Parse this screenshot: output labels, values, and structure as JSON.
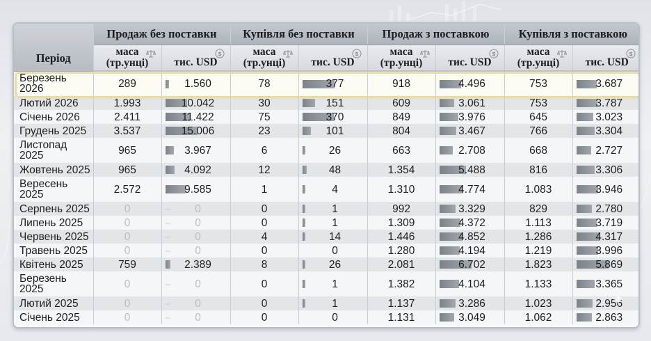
{
  "table": {
    "period_header": "Період",
    "groups": [
      "Продаж без поставки",
      "Купівля без поставки",
      "Продаж з поставкою",
      "Купівля з поставкою"
    ],
    "sub_mass_line1": "маса",
    "sub_mass_line2": "(тр.унці)",
    "sub_usd": "тис. USD",
    "zero_dash": "–",
    "rows": [
      {
        "period": "Березень 2026",
        "v": [
          "289",
          "1.560",
          "78",
          "377",
          "918",
          "4.496",
          "753",
          "3.687"
        ]
      },
      {
        "period": "Лютий 2026",
        "v": [
          "1.993",
          "10.042",
          "30",
          "151",
          "609",
          "3.061",
          "753",
          "3.787"
        ]
      },
      {
        "period": "Січень 2026",
        "v": [
          "2.411",
          "11.422",
          "75",
          "370",
          "849",
          "3.976",
          "645",
          "3.023"
        ]
      },
      {
        "period": "Грудень 2025",
        "v": [
          "3.537",
          "15.006",
          "23",
          "101",
          "804",
          "3.467",
          "766",
          "3.304"
        ]
      },
      {
        "period": "Листопад 2025",
        "v": [
          "965",
          "3.967",
          "6",
          "26",
          "663",
          "2.708",
          "668",
          "2.727"
        ]
      },
      {
        "period": "Жовтень 2025",
        "v": [
          "965",
          "4.092",
          "12",
          "48",
          "1.354",
          "5.488",
          "816",
          "3.306"
        ]
      },
      {
        "period": "Вересень 2025",
        "v": [
          "2.572",
          "9.585",
          "1",
          "4",
          "1.310",
          "4.774",
          "1.083",
          "3.946"
        ]
      },
      {
        "period": "Серпень 2025",
        "v": [
          "0",
          "0",
          "0",
          "1",
          "992",
          "3.329",
          "829",
          "2.780"
        ]
      },
      {
        "period": "Липень 2025",
        "v": [
          "0",
          "0",
          "0",
          "1",
          "1.309",
          "4.372",
          "1.113",
          "3.719"
        ]
      },
      {
        "period": "Червень 2025",
        "v": [
          "0",
          "0",
          "4",
          "14",
          "1.446",
          "4.852",
          "1.286",
          "4.317"
        ]
      },
      {
        "period": "Травень 2025",
        "v": [
          "0",
          "0",
          "0",
          "0",
          "1.280",
          "4.194",
          "1.219",
          "3.996"
        ]
      },
      {
        "period": "Квітень 2025",
        "v": [
          "759",
          "2.389",
          "8",
          "26",
          "2.081",
          "6.702",
          "1.823",
          "5.869"
        ]
      },
      {
        "period": "Березень 2025",
        "v": [
          "0",
          "0",
          "0",
          "1",
          "1.382",
          "4.104",
          "1.133",
          "3.365"
        ]
      },
      {
        "period": "Лютий 2025",
        "v": [
          "0",
          "0",
          "0",
          "1",
          "1.137",
          "3.286",
          "1.023",
          "2.956"
        ]
      },
      {
        "period": "Січень 2025",
        "v": [
          "0",
          "0",
          "0",
          "0",
          "1.131",
          "3.049",
          "1.062",
          "2.863"
        ]
      }
    ],
    "highlight_row_index": 0,
    "icons": {
      "mass": "scale-icon",
      "usd": "dollar-coin-icon"
    },
    "colors": {
      "header_bg": "#aeb4bb",
      "bar": "#7c8289",
      "highlight_border": "#e6d9a4"
    }
  }
}
